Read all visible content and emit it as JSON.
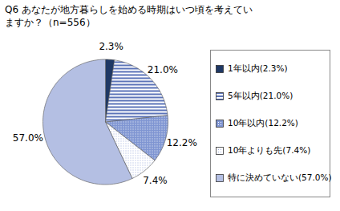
{
  "chart_data": {
    "type": "pie",
    "title": "Q6 あなたが地方暮らしを始める時期はいつ頃を考えていますか？（n=556）",
    "categories": [
      "1年以内(2.3%)",
      "5年以内(21.0%)",
      "10年以内(12.2%)",
      "10年よりも先(7.4%)",
      "特に決めていない(57.0%)"
    ],
    "values": [
      2.3,
      21.0,
      12.2,
      7.4,
      57.0
    ],
    "value_labels": [
      "2.3%",
      "21.0%",
      "12.2%",
      "7.4%",
      "57.0%"
    ],
    "colors": [
      "#1f3864",
      "#5b73b8",
      "#7f95d2",
      "#9aabdc",
      "#b4bfe3"
    ],
    "data_labels": true,
    "legend": "right"
  }
}
